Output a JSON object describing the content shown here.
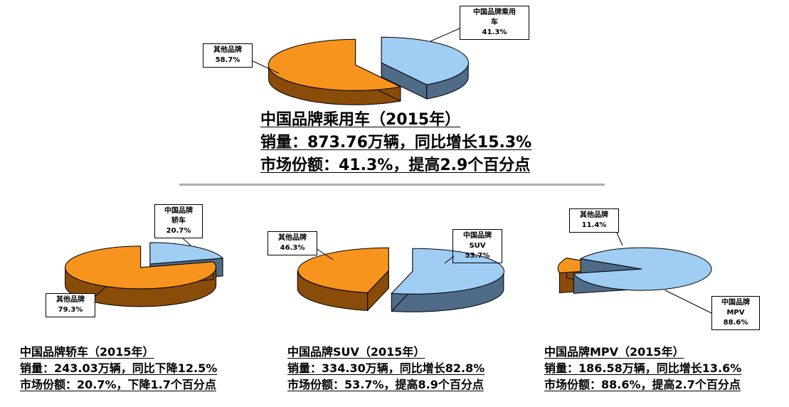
{
  "colors": {
    "china_top": "#9fcdf3",
    "china_side": "#4f6b87",
    "other_top": "#f7941d",
    "other_side": "#8a4c09"
  },
  "chart_data": [
    {
      "type": "pie",
      "title": "中国品牌乘用车（2015年）",
      "slices": [
        {
          "label": "中国品牌乘用车",
          "value": 41.3,
          "display": "41.3%"
        },
        {
          "label": "其他品牌",
          "value": 58.7,
          "display": "58.7%"
        }
      ]
    },
    {
      "type": "pie",
      "title": "中国品牌轿车（2015年）",
      "slices": [
        {
          "label": "中国品牌轿车",
          "value": 20.7,
          "display": "20.7%"
        },
        {
          "label": "其他品牌",
          "value": 79.3,
          "display": "79.3%"
        }
      ]
    },
    {
      "type": "pie",
      "title": "中国品牌SUV（2015年）",
      "slices": [
        {
          "label": "中国品牌SUV",
          "value": 53.7,
          "display": "53.7%"
        },
        {
          "label": "其他品牌",
          "value": 46.3,
          "display": "46.3%"
        }
      ]
    },
    {
      "type": "pie",
      "title": "中国品牌MPV（2015年）",
      "slices": [
        {
          "label": "中国品牌MPV",
          "value": 88.6,
          "display": "88.6%"
        },
        {
          "label": "其他品牌",
          "value": 11.4,
          "display": "11.4%"
        }
      ]
    }
  ],
  "labels": {
    "main_china": [
      "中国品牌乘用",
      "车",
      "41.3%"
    ],
    "main_other": [
      "其他品牌",
      "58.7%"
    ],
    "sedan_china": [
      "中国品牌",
      "轿车",
      "20.7%"
    ],
    "sedan_other": [
      "其他品牌",
      "79.3%"
    ],
    "suv_china": [
      "中国品牌",
      "SUV",
      "53.7%"
    ],
    "suv_other": [
      "其他品牌",
      "46.3%"
    ],
    "mpv_china": [
      "中国品牌",
      "MPV",
      "88.6%"
    ],
    "mpv_other": [
      "其他品牌",
      "11.4%"
    ]
  },
  "captions": {
    "main": [
      "中国品牌乘用车（2015年）",
      "销量：873.76万辆，同比增长15.3%",
      "市场份额：41.3%，提高2.9个百分点"
    ],
    "sedan": [
      "中国品牌轿车（2015年）",
      "销量：243.03万辆，同比下降12.5%",
      "市场份额：20.7%，下降1.7个百分点"
    ],
    "suv": [
      "中国品牌SUV（2015年）",
      "销量：334.30万辆，同比增长82.8%",
      "市场份额：53.7%，提高8.9个百分点"
    ],
    "mpv": [
      "中国品牌MPV（2015年）",
      "销量：186.58万辆，同比增长13.6%",
      "市场份额：88.6%，提高2.7个百分点"
    ]
  }
}
